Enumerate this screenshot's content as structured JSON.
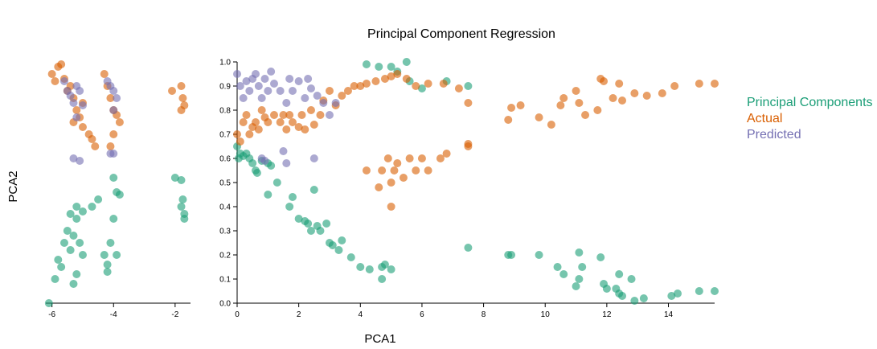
{
  "chart_data": {
    "type": "scatter",
    "title": "Principal Component Regression",
    "xlabel": "PCA1",
    "ylabel": "PCA2",
    "legend_position": "right",
    "panels": [
      {
        "name": "left",
        "xlim": [
          -6.2,
          -1.5
        ],
        "ylim": [
          0,
          1.0
        ],
        "xticks": [
          -6,
          -4,
          -2
        ],
        "xtick_labels": [
          "-6",
          "-4",
          "-2"
        ]
      },
      {
        "name": "main",
        "xlim": [
          0,
          15.5
        ],
        "ylim": [
          0,
          1.0
        ],
        "xticks": [
          0,
          2,
          4,
          6,
          8,
          10,
          12,
          14
        ],
        "xtick_labels": [
          "0",
          "2",
          "4",
          "6",
          "8",
          "10",
          "12",
          "14"
        ],
        "yticks": [
          0,
          0.1,
          0.2,
          0.3,
          0.4,
          0.5,
          0.6,
          0.7,
          0.8,
          0.9,
          1.0
        ],
        "ytick_labels": [
          "0.0",
          "0.1",
          "0.2",
          "0.3",
          "0.4",
          "0.5",
          "0.6",
          "0.7",
          "0.8",
          "0.9",
          "1.0"
        ]
      }
    ],
    "series": [
      {
        "name": "Principal Components",
        "color": "#1b9e77",
        "points": [
          [
            0.0,
            0.65
          ],
          [
            0.05,
            0.6
          ],
          [
            0.1,
            0.62
          ],
          [
            0.2,
            0.61
          ],
          [
            0.3,
            0.62
          ],
          [
            0.4,
            0.6
          ],
          [
            0.5,
            0.58
          ],
          [
            0.6,
            0.55
          ],
          [
            0.65,
            0.54
          ],
          [
            0.8,
            0.59
          ],
          [
            1.0,
            0.58
          ],
          [
            1.1,
            0.57
          ],
          [
            1.0,
            0.45
          ],
          [
            1.3,
            0.5
          ],
          [
            1.7,
            0.4
          ],
          [
            1.8,
            0.44
          ],
          [
            2.0,
            0.35
          ],
          [
            2.2,
            0.34
          ],
          [
            2.3,
            0.33
          ],
          [
            2.4,
            0.3
          ],
          [
            2.5,
            0.47
          ],
          [
            2.6,
            0.32
          ],
          [
            2.7,
            0.3
          ],
          [
            2.9,
            0.33
          ],
          [
            3.0,
            0.25
          ],
          [
            3.1,
            0.24
          ],
          [
            3.3,
            0.22
          ],
          [
            3.4,
            0.26
          ],
          [
            3.7,
            0.19
          ],
          [
            4.0,
            0.15
          ],
          [
            4.3,
            0.14
          ],
          [
            4.7,
            0.15
          ],
          [
            4.8,
            0.16
          ],
          [
            5.0,
            0.14
          ],
          [
            4.7,
            0.1
          ],
          [
            4.2,
            0.99
          ],
          [
            4.6,
            0.98
          ],
          [
            5.0,
            0.98
          ],
          [
            5.2,
            0.96
          ],
          [
            5.5,
            1.0
          ],
          [
            5.6,
            0.92
          ],
          [
            6.0,
            0.89
          ],
          [
            6.8,
            0.92
          ],
          [
            7.5,
            0.9
          ],
          [
            7.5,
            0.23
          ],
          [
            8.8,
            0.2
          ],
          [
            8.9,
            0.2
          ],
          [
            9.8,
            0.2
          ],
          [
            10.4,
            0.15
          ],
          [
            10.6,
            0.12
          ],
          [
            11.0,
            0.07
          ],
          [
            11.1,
            0.21
          ],
          [
            11.2,
            0.15
          ],
          [
            11.1,
            0.1
          ],
          [
            11.8,
            0.19
          ],
          [
            11.9,
            0.08
          ],
          [
            12.0,
            0.06
          ],
          [
            12.3,
            0.06
          ],
          [
            12.4,
            0.04
          ],
          [
            12.5,
            0.03
          ],
          [
            12.4,
            0.12
          ],
          [
            12.8,
            0.1
          ],
          [
            12.9,
            0.01
          ],
          [
            13.2,
            0.02
          ],
          [
            14.1,
            0.03
          ],
          [
            14.3,
            0.04
          ],
          [
            15.0,
            0.05
          ],
          [
            15.5,
            0.05
          ],
          [
            -6.1,
            0.0
          ],
          [
            -5.9,
            0.1
          ],
          [
            -5.8,
            0.18
          ],
          [
            -5.7,
            0.15
          ],
          [
            -5.6,
            0.25
          ],
          [
            -5.5,
            0.3
          ],
          [
            -5.4,
            0.22
          ],
          [
            -5.3,
            0.28
          ],
          [
            -5.2,
            0.35
          ],
          [
            -5.1,
            0.25
          ],
          [
            -5.0,
            0.2
          ],
          [
            -5.2,
            0.12
          ],
          [
            -5.3,
            0.08
          ],
          [
            -5.0,
            0.38
          ],
          [
            -5.2,
            0.4
          ],
          [
            -5.4,
            0.37
          ],
          [
            -4.7,
            0.4
          ],
          [
            -4.5,
            0.43
          ],
          [
            -4.3,
            0.2
          ],
          [
            -4.2,
            0.16
          ],
          [
            -4.1,
            0.25
          ],
          [
            -4.0,
            0.52
          ],
          [
            -3.9,
            0.46
          ],
          [
            -3.8,
            0.45
          ],
          [
            -4.0,
            0.35
          ],
          [
            -3.9,
            0.2
          ],
          [
            -4.2,
            0.13
          ],
          [
            -2.0,
            0.52
          ],
          [
            -1.8,
            0.51
          ],
          [
            -1.75,
            0.43
          ],
          [
            -1.7,
            0.37
          ],
          [
            -1.8,
            0.4
          ],
          [
            -1.7,
            0.35
          ]
        ]
      },
      {
        "name": "Actual",
        "color": "#d95f02",
        "points": [
          [
            0.0,
            0.7
          ],
          [
            0.1,
            0.67
          ],
          [
            0.2,
            0.75
          ],
          [
            0.3,
            0.78
          ],
          [
            0.4,
            0.7
          ],
          [
            0.5,
            0.73
          ],
          [
            0.6,
            0.75
          ],
          [
            0.7,
            0.72
          ],
          [
            0.8,
            0.8
          ],
          [
            0.9,
            0.77
          ],
          [
            1.0,
            0.75
          ],
          [
            1.2,
            0.78
          ],
          [
            1.4,
            0.75
          ],
          [
            1.5,
            0.78
          ],
          [
            1.6,
            0.72
          ],
          [
            1.7,
            0.78
          ],
          [
            1.8,
            0.75
          ],
          [
            2.0,
            0.73
          ],
          [
            2.1,
            0.78
          ],
          [
            2.2,
            0.72
          ],
          [
            2.4,
            0.8
          ],
          [
            2.5,
            0.74
          ],
          [
            2.7,
            0.78
          ],
          [
            2.8,
            0.84
          ],
          [
            3.0,
            0.88
          ],
          [
            3.2,
            0.82
          ],
          [
            3.4,
            0.86
          ],
          [
            3.6,
            0.88
          ],
          [
            3.8,
            0.9
          ],
          [
            4.0,
            0.9
          ],
          [
            4.2,
            0.91
          ],
          [
            4.5,
            0.92
          ],
          [
            4.8,
            0.93
          ],
          [
            5.0,
            0.94
          ],
          [
            5.2,
            0.95
          ],
          [
            5.5,
            0.93
          ],
          [
            5.8,
            0.9
          ],
          [
            6.2,
            0.91
          ],
          [
            6.7,
            0.91
          ],
          [
            7.2,
            0.89
          ],
          [
            7.5,
            0.83
          ],
          [
            4.2,
            0.55
          ],
          [
            4.6,
            0.48
          ],
          [
            4.7,
            0.55
          ],
          [
            4.9,
            0.6
          ],
          [
            5.0,
            0.5
          ],
          [
            5.0,
            0.4
          ],
          [
            5.1,
            0.55
          ],
          [
            5.2,
            0.58
          ],
          [
            5.4,
            0.52
          ],
          [
            5.6,
            0.6
          ],
          [
            5.8,
            0.55
          ],
          [
            6.0,
            0.6
          ],
          [
            6.2,
            0.55
          ],
          [
            6.6,
            0.6
          ],
          [
            6.8,
            0.62
          ],
          [
            7.5,
            0.66
          ],
          [
            7.5,
            0.65
          ],
          [
            8.8,
            0.76
          ],
          [
            8.9,
            0.81
          ],
          [
            9.2,
            0.82
          ],
          [
            9.8,
            0.77
          ],
          [
            10.2,
            0.74
          ],
          [
            10.5,
            0.82
          ],
          [
            10.6,
            0.85
          ],
          [
            11.0,
            0.88
          ],
          [
            11.1,
            0.83
          ],
          [
            11.3,
            0.78
          ],
          [
            11.7,
            0.8
          ],
          [
            11.8,
            0.93
          ],
          [
            11.9,
            0.92
          ],
          [
            12.2,
            0.85
          ],
          [
            12.4,
            0.91
          ],
          [
            12.5,
            0.84
          ],
          [
            12.9,
            0.87
          ],
          [
            13.3,
            0.86
          ],
          [
            13.8,
            0.87
          ],
          [
            14.2,
            0.9
          ],
          [
            15.0,
            0.91
          ],
          [
            15.5,
            0.91
          ],
          [
            -6.0,
            0.95
          ],
          [
            -5.9,
            0.92
          ],
          [
            -5.8,
            0.98
          ],
          [
            -5.7,
            0.99
          ],
          [
            -5.6,
            0.93
          ],
          [
            -5.5,
            0.88
          ],
          [
            -5.4,
            0.9
          ],
          [
            -5.3,
            0.85
          ],
          [
            -5.2,
            0.8
          ],
          [
            -5.1,
            0.77
          ],
          [
            -5.0,
            0.73
          ],
          [
            -5.3,
            0.75
          ],
          [
            -5.0,
            0.83
          ],
          [
            -4.8,
            0.7
          ],
          [
            -4.7,
            0.68
          ],
          [
            -4.6,
            0.65
          ],
          [
            -4.3,
            0.95
          ],
          [
            -4.2,
            0.9
          ],
          [
            -4.1,
            0.85
          ],
          [
            -4.0,
            0.8
          ],
          [
            -3.9,
            0.78
          ],
          [
            -3.8,
            0.75
          ],
          [
            -4.0,
            0.7
          ],
          [
            -4.1,
            0.65
          ],
          [
            -2.1,
            0.88
          ],
          [
            -1.8,
            0.9
          ],
          [
            -1.75,
            0.85
          ],
          [
            -1.7,
            0.82
          ],
          [
            -1.8,
            0.8
          ]
        ]
      },
      {
        "name": "Predicted",
        "color": "#7570b3",
        "points": [
          [
            0.0,
            0.95
          ],
          [
            0.1,
            0.9
          ],
          [
            0.2,
            0.85
          ],
          [
            0.3,
            0.92
          ],
          [
            0.4,
            0.88
          ],
          [
            0.5,
            0.93
          ],
          [
            0.6,
            0.95
          ],
          [
            0.7,
            0.9
          ],
          [
            0.8,
            0.85
          ],
          [
            0.9,
            0.93
          ],
          [
            1.0,
            0.88
          ],
          [
            1.1,
            0.96
          ],
          [
            1.2,
            0.91
          ],
          [
            1.4,
            0.88
          ],
          [
            1.6,
            0.83
          ],
          [
            1.7,
            0.93
          ],
          [
            1.8,
            0.88
          ],
          [
            2.0,
            0.92
          ],
          [
            2.2,
            0.85
          ],
          [
            2.3,
            0.93
          ],
          [
            2.4,
            0.89
          ],
          [
            2.6,
            0.86
          ],
          [
            2.8,
            0.83
          ],
          [
            3.0,
            0.78
          ],
          [
            3.2,
            0.83
          ],
          [
            2.5,
            0.6
          ],
          [
            1.6,
            0.58
          ],
          [
            1.5,
            0.63
          ],
          [
            0.9,
            0.59
          ],
          [
            0.8,
            0.6
          ],
          [
            -5.6,
            0.92
          ],
          [
            -5.5,
            0.88
          ],
          [
            -5.4,
            0.86
          ],
          [
            -5.3,
            0.83
          ],
          [
            -5.2,
            0.9
          ],
          [
            -5.1,
            0.88
          ],
          [
            -5.0,
            0.82
          ],
          [
            -5.2,
            0.77
          ],
          [
            -5.3,
            0.6
          ],
          [
            -5.1,
            0.59
          ],
          [
            -4.2,
            0.92
          ],
          [
            -4.1,
            0.9
          ],
          [
            -4.0,
            0.88
          ],
          [
            -3.9,
            0.85
          ],
          [
            -4.0,
            0.8
          ],
          [
            -4.1,
            0.62
          ],
          [
            -4.0,
            0.62
          ]
        ]
      }
    ]
  }
}
